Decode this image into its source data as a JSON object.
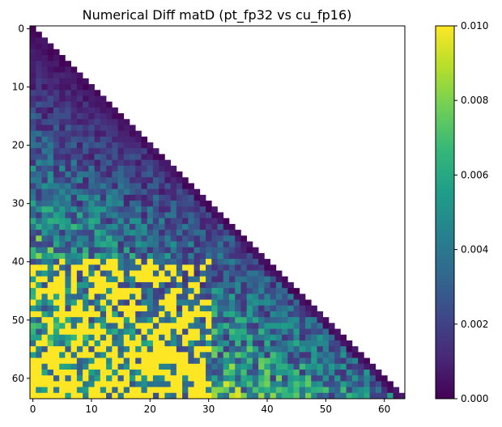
{
  "chart_data": {
    "type": "heatmap",
    "title": "Numerical Diff matD (pt_fp32 vs cu_fp16)",
    "xlabel": "",
    "ylabel": "",
    "rows": 64,
    "cols": 64,
    "mask": "lower-triangular (including diagonal); upper triangle blank",
    "x_ticks": [
      0,
      10,
      20,
      30,
      40,
      50,
      60
    ],
    "y_ticks": [
      0,
      10,
      20,
      30,
      40,
      50,
      60
    ],
    "colorbar": {
      "min": 0.0,
      "max": 0.01,
      "ticks": [
        "0.000",
        "0.002",
        "0.004",
        "0.006",
        "0.008",
        "0.010"
      ]
    },
    "colormap": "viridis",
    "colormap_stops": [
      "#440154",
      "#482878",
      "#3e4989",
      "#31688e",
      "#26828e",
      "#1f9e89",
      "#35b779",
      "#6ece58",
      "#b5de2b",
      "#fde725"
    ],
    "value_trend": "values near 0 along the diagonal, increasing toward the bottom-left; many cells saturate at 0.010 for rows 40-63, cols 0-30",
    "grid": false
  }
}
